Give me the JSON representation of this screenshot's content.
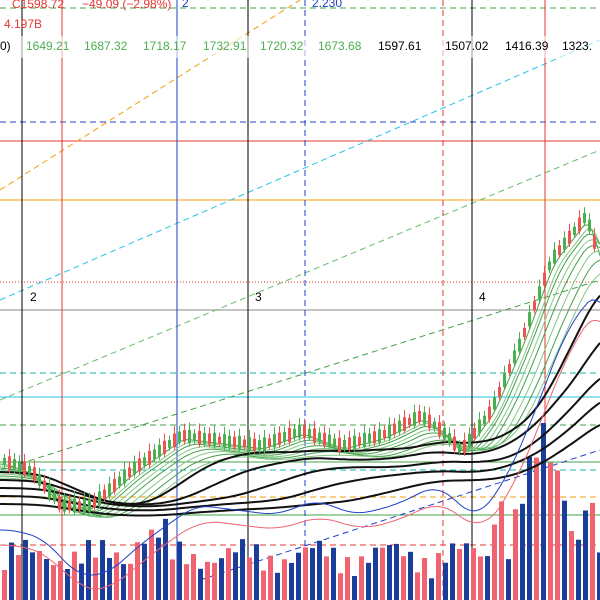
{
  "header": {
    "close": "C1598.72",
    "change": "−49.09 (−2.98%)",
    "marker": "2",
    "level": "2.230",
    "volume": "4.197B"
  },
  "ma_values": {
    "prefix": "0)",
    "items": [
      "1649.21",
      "1687.32",
      "1718.17",
      "1732.91",
      "1720.32",
      "1673.68",
      "1597.61",
      "1507.02",
      "1416.39",
      "1323."
    ]
  },
  "wave_labels": [
    "2",
    "3",
    "4"
  ]
}
